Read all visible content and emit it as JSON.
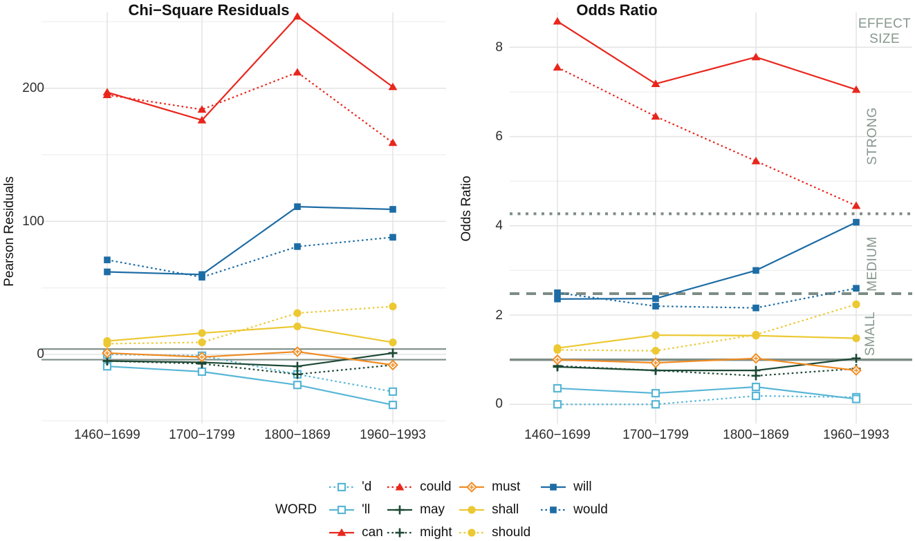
{
  "colors": {
    "red": "#e8261c",
    "blue": "#1d6ca5",
    "light_blue": "#58b6d6",
    "orange": "#f08c22",
    "yellow": "#ecc832",
    "dark_green": "#1b4733",
    "threshold_gray": "#7d8d85",
    "annotation_gray": "#87978e",
    "grid_major": "#e3e3e3",
    "grid_minor": "#efefef"
  },
  "chart_data": {
    "type": "line",
    "x_type": "categorical",
    "categories": [
      "1460−1699",
      "1700−1799",
      "1800−1869",
      "1960−1993"
    ],
    "series_styles": {
      "'d": {
        "color": "light_blue",
        "dash": "dotted",
        "marker": "open-square"
      },
      "'ll": {
        "color": "light_blue",
        "dash": "solid",
        "marker": "open-square"
      },
      "can": {
        "color": "red",
        "dash": "solid",
        "marker": "triangle"
      },
      "could": {
        "color": "red",
        "dash": "dotted",
        "marker": "triangle"
      },
      "may": {
        "color": "dark_green",
        "dash": "solid",
        "marker": "plus"
      },
      "might": {
        "color": "dark_green",
        "dash": "dotted",
        "marker": "plus"
      },
      "must": {
        "color": "orange",
        "dash": "solid",
        "marker": "diamond-plus"
      },
      "shall": {
        "color": "yellow",
        "dash": "solid",
        "marker": "circle"
      },
      "should": {
        "color": "yellow",
        "dash": "dotted",
        "marker": "circle"
      },
      "will": {
        "color": "blue",
        "dash": "solid",
        "marker": "square"
      },
      "would": {
        "color": "blue",
        "dash": "dotted",
        "marker": "square"
      }
    },
    "panels": [
      {
        "key": "chi-square-residuals",
        "title": "Chi−Square Residuals",
        "ylabel": "Pearson Residuals",
        "ylim": [
          -52,
          257
        ],
        "yticks": [
          {
            "value": 0,
            "label": "0"
          },
          {
            "value": 100,
            "label": "100"
          },
          {
            "value": 200,
            "label": "200"
          }
        ],
        "minor_gridlines": [
          -50,
          50,
          150,
          250
        ],
        "ref_lines": [
          {
            "value": 4,
            "style": "solid",
            "width": 2.2
          },
          {
            "value": -4,
            "style": "solid",
            "width": 2.2
          }
        ],
        "series": [
          {
            "name": "'d",
            "values": [
              0,
              -1,
              -15,
              -28
            ]
          },
          {
            "name": "'ll",
            "values": [
              -9,
              -13,
              -23,
              -38
            ]
          },
          {
            "name": "might",
            "values": [
              -5,
              -7,
              -15,
              -8
            ]
          },
          {
            "name": "may",
            "values": [
              -5,
              -6,
              -9,
              1
            ]
          },
          {
            "name": "must",
            "values": [
              1,
              -2,
              2,
              -8
            ]
          },
          {
            "name": "should",
            "values": [
              8,
              9,
              31,
              36
            ]
          },
          {
            "name": "shall",
            "values": [
              10,
              16,
              21,
              9
            ]
          },
          {
            "name": "would",
            "values": [
              71,
              58,
              81,
              88
            ]
          },
          {
            "name": "will",
            "values": [
              62,
              60,
              111,
              109
            ]
          },
          {
            "name": "could",
            "values": [
              195,
              184,
              212,
              159
            ]
          },
          {
            "name": "can",
            "values": [
              197,
              176,
              254,
              201
            ]
          }
        ]
      },
      {
        "key": "odds-ratio",
        "title": "Odds Ratio",
        "ylabel": "Odds Ratio",
        "ylim": [
          -0.43,
          8.78
        ],
        "yticks": [
          {
            "value": 0,
            "label": "0"
          },
          {
            "value": 2,
            "label": "2"
          },
          {
            "value": 4,
            "label": "4"
          },
          {
            "value": 6,
            "label": "6"
          },
          {
            "value": 8,
            "label": "8"
          }
        ],
        "minor_gridlines": [
          1,
          3,
          5,
          7
        ],
        "ref_lines": [
          {
            "value": 1.0,
            "style": "solid",
            "width": 3.5
          },
          {
            "value": 2.48,
            "style": "dashed",
            "width": 4
          },
          {
            "value": 4.27,
            "style": "dotted",
            "width": 4
          }
        ],
        "annotations": [
          {
            "text": "EFFECT SIZE"
          },
          {
            "text": "STRONG"
          },
          {
            "text": "MEDIUM"
          },
          {
            "text": "SMALL"
          }
        ],
        "series": [
          {
            "name": "'d",
            "values": [
              0.0,
              0.0,
              0.19,
              0.16
            ]
          },
          {
            "name": "'ll",
            "values": [
              0.36,
              0.25,
              0.39,
              0.12
            ]
          },
          {
            "name": "might",
            "values": [
              0.86,
              0.76,
              0.64,
              0.8
            ]
          },
          {
            "name": "may",
            "values": [
              0.84,
              0.76,
              0.76,
              1.03
            ]
          },
          {
            "name": "must",
            "values": [
              1.0,
              0.93,
              1.03,
              0.76
            ]
          },
          {
            "name": "should",
            "values": [
              1.22,
              1.2,
              1.56,
              2.24
            ]
          },
          {
            "name": "shall",
            "values": [
              1.26,
              1.55,
              1.54,
              1.48
            ]
          },
          {
            "name": "would",
            "values": [
              2.5,
              2.2,
              2.16,
              2.6
            ]
          },
          {
            "name": "will",
            "values": [
              2.36,
              2.37,
              3.0,
              4.08
            ]
          },
          {
            "name": "could",
            "values": [
              7.55,
              6.45,
              5.45,
              4.45
            ]
          },
          {
            "name": "can",
            "values": [
              8.58,
              7.18,
              7.78,
              7.05
            ]
          }
        ]
      }
    ]
  },
  "legend": {
    "title": "WORD",
    "items": [
      {
        "label": "'d"
      },
      {
        "label": "'ll"
      },
      {
        "label": "can"
      },
      {
        "label": "could"
      },
      {
        "label": "may"
      },
      {
        "label": "might"
      },
      {
        "label": "must"
      },
      {
        "label": "shall"
      },
      {
        "label": "should"
      },
      {
        "label": "will"
      },
      {
        "label": "would"
      }
    ]
  }
}
